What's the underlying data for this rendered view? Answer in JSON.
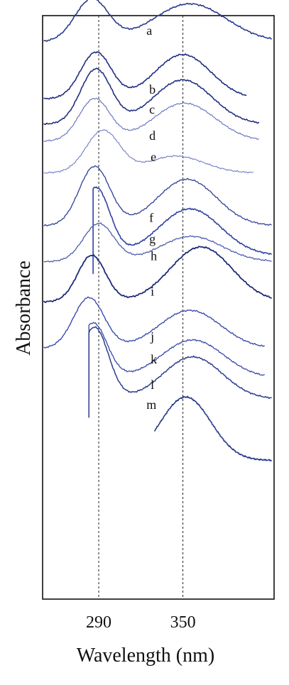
{
  "chart_data": {
    "type": "line",
    "title": "",
    "xlabel": "Wavelength (nm)",
    "ylabel": "Absorbance",
    "xlim": [
      250,
      415
    ],
    "ylim": [
      -13.2,
      0.6
    ],
    "x_ticks": [
      {
        "value": 290,
        "label": "290"
      },
      {
        "value": 350,
        "label": "350"
      }
    ],
    "reference_lines_x": [
      290,
      350
    ],
    "y_tick_labels": false,
    "grid": false,
    "legend": "none",
    "series_note": "curves are vertically offset; absorbance values are in offset plot units",
    "series": [
      {
        "label": "a",
        "color": "#2a3a8a",
        "width": 1.6,
        "peaks": [
          {
            "x": 285,
            "h": 1.0,
            "s": 12
          },
          {
            "x": 355,
            "h": 0.9,
            "s": 26
          }
        ],
        "baseline": -0.02,
        "offset": 0.0,
        "x_range": [
          251,
          413
        ],
        "label_at": [
          324,
          0.15
        ]
      },
      {
        "label": "b",
        "color": "#1f2d80",
        "width": 1.6,
        "peaks": [
          {
            "x": 288,
            "h": 1.1,
            "s": 11
          },
          {
            "x": 350,
            "h": 1.05,
            "s": 20
          }
        ],
        "baseline": -0.02,
        "offset": -1.35,
        "x_range": [
          251,
          395
        ],
        "label_at": [
          326,
          -1.25
        ]
      },
      {
        "label": "c",
        "color": "#22307f",
        "width": 1.6,
        "peaks": [
          {
            "x": 288,
            "h": 1.3,
            "s": 11
          },
          {
            "x": 350,
            "h": 1.05,
            "s": 21
          }
        ],
        "baseline": -0.02,
        "offset": -1.95,
        "x_range": [
          251,
          404
        ],
        "label_at": [
          326,
          -1.72
        ]
      },
      {
        "label": "d",
        "color": "#6a78c0",
        "width": 1.2,
        "peaks": [
          {
            "x": 287,
            "h": 1.0,
            "s": 11
          },
          {
            "x": 351,
            "h": 0.9,
            "s": 22
          }
        ],
        "baseline": -0.02,
        "offset": -2.35,
        "x_range": [
          251,
          404
        ],
        "label_at": [
          326,
          -2.34
        ]
      },
      {
        "label": "e",
        "color": "#7a86c8",
        "width": 1.2,
        "peaks": [
          {
            "x": 293,
            "h": 1.0,
            "s": 12
          },
          {
            "x": 345,
            "h": 0.4,
            "s": 20
          }
        ],
        "baseline": -0.02,
        "offset": -3.1,
        "x_range": [
          251,
          400
        ],
        "label_at": [
          327,
          -2.84
        ]
      },
      {
        "label": "f",
        "color": "#3a4a9a",
        "width": 1.4,
        "peaks": [
          {
            "x": 287,
            "h": 1.4,
            "s": 11
          },
          {
            "x": 353,
            "h": 1.1,
            "s": 21
          }
        ],
        "baseline": -0.02,
        "offset": -4.35,
        "x_range": [
          251,
          413
        ],
        "label_at": [
          326,
          -4.28
        ]
      },
      {
        "label": "g",
        "color": "#3040a0",
        "width": 1.6,
        "peaks": [
          {
            "x": 288,
            "h": 1.6,
            "s": 10
          },
          {
            "x": 355,
            "h": 1.1,
            "s": 22
          }
        ],
        "baseline": -0.02,
        "offset": -5.05,
        "x_range": [
          286,
          413
        ],
        "x_tail": [
          286,
          287
        ],
        "label_at": [
          326,
          -4.78
        ]
      },
      {
        "label": "h",
        "color": "#4d5cae",
        "width": 1.3,
        "peaks": [
          {
            "x": 290,
            "h": 0.9,
            "s": 11
          },
          {
            "x": 356,
            "h": 0.6,
            "s": 22
          }
        ],
        "baseline": -0.02,
        "offset": -5.2,
        "x_range": [
          251,
          413
        ],
        "label_at": [
          327,
          -5.18
        ]
      },
      {
        "label": "i",
        "color": "#1c2a78",
        "width": 1.8,
        "peaks": [
          {
            "x": 285,
            "h": 1.1,
            "s": 10
          },
          {
            "x": 363,
            "h": 1.3,
            "s": 22
          }
        ],
        "baseline": -0.02,
        "offset": -6.15,
        "x_range": [
          251,
          413
        ],
        "label_at": [
          327,
          -6.02
        ]
      },
      {
        "label": "j",
        "color": "#3a4ab0",
        "width": 1.4,
        "peaks": [
          {
            "x": 283,
            "h": 1.2,
            "s": 11
          },
          {
            "x": 355,
            "h": 0.9,
            "s": 22
          }
        ],
        "baseline": -0.02,
        "offset": -7.25,
        "x_range": [
          251,
          408
        ],
        "label_at": [
          327,
          -7.09
        ]
      },
      {
        "label": "k",
        "color": "#3848a8",
        "width": 1.3,
        "peaks": [
          {
            "x": 286,
            "h": 1.3,
            "s": 10
          },
          {
            "x": 357,
            "h": 0.9,
            "s": 22
          }
        ],
        "baseline": -0.02,
        "offset": -7.95,
        "x_range": [
          283,
          408
        ],
        "x_tail": [
          283,
          284
        ],
        "label_at": [
          327,
          -7.63
        ]
      },
      {
        "label": "l",
        "color": "#2d3d90",
        "width": 1.5,
        "peaks": [
          {
            "x": 287,
            "h": 1.7,
            "s": 10
          },
          {
            "x": 357,
            "h": 1.0,
            "s": 21
          }
        ],
        "baseline": -0.02,
        "offset": -8.45,
        "x_range": [
          283,
          413
        ],
        "x_tail": [
          283,
          285
        ],
        "label_at": [
          327,
          -8.23
        ]
      },
      {
        "label": "m",
        "color": "#2a3a8a",
        "width": 1.6,
        "peaks": [
          {
            "x": 352,
            "h": 1.5,
            "s": 18
          }
        ],
        "baseline": -0.02,
        "offset": -9.9,
        "x_range": [
          330,
          413
        ],
        "label_at": [
          324,
          -8.7
        ]
      }
    ]
  }
}
